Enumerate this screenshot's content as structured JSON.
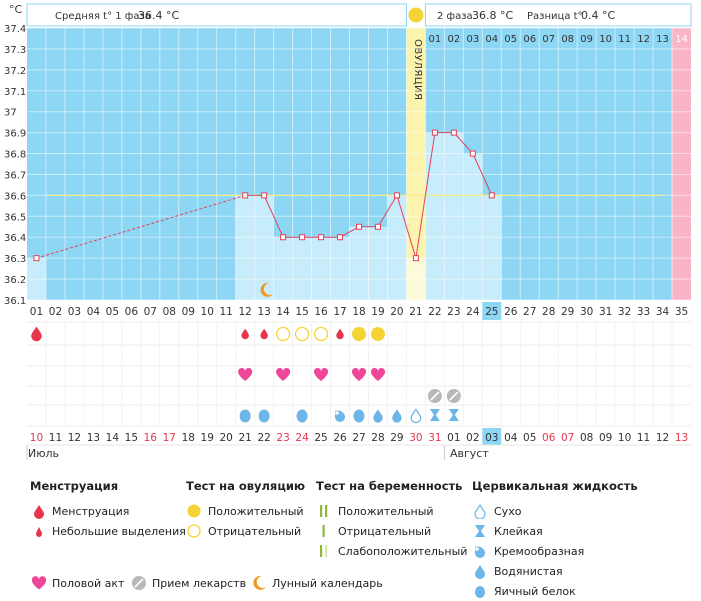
{
  "header": {
    "unit": "°C",
    "phase1_label": "Средняя t° 1 фаза",
    "phase1_value": "36.4 °C",
    "phase2_label": "2 фаза",
    "phase2_value": "36.8 °C",
    "diff_label": "Разница t°",
    "diff_value": "0.4 °C",
    "ovulation_label": "ОВУЛЯЦИЯ"
  },
  "phase_days_top": [
    "01",
    "02",
    "03",
    "04",
    "05",
    "06",
    "07",
    "08",
    "09",
    "10",
    "11",
    "12",
    "13",
    "14"
  ],
  "cycle_days": [
    "01",
    "02",
    "03",
    "04",
    "05",
    "06",
    "07",
    "08",
    "09",
    "10",
    "11",
    "12",
    "13",
    "14",
    "15",
    "16",
    "17",
    "18",
    "19",
    "20",
    "21",
    "22",
    "23",
    "24",
    "25",
    "26",
    "27",
    "28",
    "29",
    "30",
    "31",
    "32",
    "33",
    "34",
    "35"
  ],
  "current_cycle_day": 25,
  "ovulation_cycle_day": 21,
  "chart_data": {
    "type": "line",
    "ylabel": "°C",
    "ylim": [
      36.1,
      37.4
    ],
    "yticks": [
      "37.4",
      "37.3",
      "37.2",
      "37.1",
      "37",
      "36.9",
      "36.8",
      "36.7",
      "36.6",
      "36.5",
      "36.4",
      "36.3",
      "36.2",
      "36.1"
    ],
    "coverline": 36.6,
    "series": [
      {
        "points": [
          {
            "day": 1,
            "temp": 36.3
          },
          {
            "day": 12,
            "temp": 36.6
          },
          {
            "day": 13,
            "temp": 36.6
          },
          {
            "day": 14,
            "temp": 36.4
          },
          {
            "day": 15,
            "temp": 36.4
          },
          {
            "day": 16,
            "temp": 36.4
          },
          {
            "day": 17,
            "temp": 36.4
          },
          {
            "day": 18,
            "temp": 36.45
          },
          {
            "day": 19,
            "temp": 36.45
          },
          {
            "day": 20,
            "temp": 36.6
          },
          {
            "day": 21,
            "temp": 36.3
          },
          {
            "day": 22,
            "temp": 36.9
          },
          {
            "day": 23,
            "temp": 36.9
          },
          {
            "day": 24,
            "temp": 36.8
          },
          {
            "day": 25,
            "temp": 36.6
          }
        ],
        "dashed_until_day": 12
      }
    ]
  },
  "markers": {
    "menstruation": [
      {
        "day": 1,
        "size": "big"
      },
      {
        "day": 12,
        "size": "small"
      },
      {
        "day": 13,
        "size": "small"
      },
      {
        "day": 17,
        "size": "small"
      }
    ],
    "ovulation_tests": [
      {
        "day": 14,
        "result": "negative"
      },
      {
        "day": 15,
        "result": "negative"
      },
      {
        "day": 16,
        "result": "negative"
      },
      {
        "day": 18,
        "result": "positive"
      },
      {
        "day": 19,
        "result": "positive"
      }
    ],
    "intercourse": [
      12,
      14,
      16,
      18,
      19
    ],
    "medication": [
      22,
      23
    ],
    "cervical": [
      {
        "day": 12,
        "type": "egg-white"
      },
      {
        "day": 13,
        "type": "egg-white"
      },
      {
        "day": 15,
        "type": "egg-white"
      },
      {
        "day": 17,
        "type": "creamy"
      },
      {
        "day": 18,
        "type": "egg-white"
      },
      {
        "day": 19,
        "type": "watery"
      },
      {
        "day": 20,
        "type": "watery"
      },
      {
        "day": 21,
        "type": "dry"
      },
      {
        "day": 22,
        "type": "sticky"
      },
      {
        "day": 23,
        "type": "sticky"
      }
    ],
    "moon": [
      13
    ]
  },
  "calendar_dates": [
    {
      "d": "10",
      "c": "#e8354b"
    },
    {
      "d": "11",
      "c": "#333333"
    },
    {
      "d": "12",
      "c": "#333333"
    },
    {
      "d": "13",
      "c": "#333333"
    },
    {
      "d": "14",
      "c": "#333333"
    },
    {
      "d": "15",
      "c": "#333333"
    },
    {
      "d": "16",
      "c": "#e8354b"
    },
    {
      "d": "17",
      "c": "#e8354b"
    },
    {
      "d": "18",
      "c": "#333333"
    },
    {
      "d": "19",
      "c": "#333333"
    },
    {
      "d": "20",
      "c": "#333333"
    },
    {
      "d": "21",
      "c": "#333333"
    },
    {
      "d": "22",
      "c": "#333333"
    },
    {
      "d": "23",
      "c": "#e8354b"
    },
    {
      "d": "24",
      "c": "#e8354b"
    },
    {
      "d": "25",
      "c": "#333333"
    },
    {
      "d": "26",
      "c": "#333333"
    },
    {
      "d": "27",
      "c": "#333333"
    },
    {
      "d": "28",
      "c": "#333333"
    },
    {
      "d": "29",
      "c": "#333333"
    },
    {
      "d": "30",
      "c": "#e8354b"
    },
    {
      "d": "31",
      "c": "#e8354b"
    },
    {
      "d": "01",
      "c": "#333333"
    },
    {
      "d": "02",
      "c": "#333333"
    },
    {
      "d": "03",
      "c": "#333333"
    },
    {
      "d": "04",
      "c": "#333333"
    },
    {
      "d": "05",
      "c": "#333333"
    },
    {
      "d": "06",
      "c": "#e8354b"
    },
    {
      "d": "07",
      "c": "#e8354b"
    },
    {
      "d": "08",
      "c": "#333333"
    },
    {
      "d": "09",
      "c": "#333333"
    },
    {
      "d": "10",
      "c": "#333333"
    },
    {
      "d": "11",
      "c": "#333333"
    },
    {
      "d": "12",
      "c": "#333333"
    },
    {
      "d": "13",
      "c": "#e8354b"
    }
  ],
  "months": {
    "july": "Июль",
    "august": "Август"
  },
  "legend": {
    "menstruation": {
      "title": "Менструация",
      "items": [
        "Менструация",
        "Небольшие выделения"
      ]
    },
    "ovulation_test": {
      "title": "Тест на овуляцию",
      "items": [
        "Положительный",
        "Отрицательный"
      ]
    },
    "pregnancy_test": {
      "title": "Тест на беременность",
      "items": [
        "Положительный",
        "Отрицательный",
        "Слабоположительный"
      ]
    },
    "cervical": {
      "title": "Цервикальная жидкость",
      "items": [
        "Сухо",
        "Клейкая",
        "Кремообразная",
        "Водянистая",
        "Яичный белок"
      ]
    },
    "footer": [
      "Половой акт",
      "Прием лекарств",
      "Лунный календарь"
    ]
  },
  "colors": {
    "chart_bg": "#8dd6f4",
    "bar": "#c7ecfb",
    "line": "#e2415a",
    "coverline": "#f5ec8a",
    "ovulation": "#fcf3ae",
    "period_end": "#f9b4c8",
    "drop": "#e8354b",
    "heart": "#f0469a",
    "test": "#f6d335",
    "cervical": "#6cb6e8",
    "moon": "#f29a1f",
    "pill": "#b8b8b8"
  }
}
